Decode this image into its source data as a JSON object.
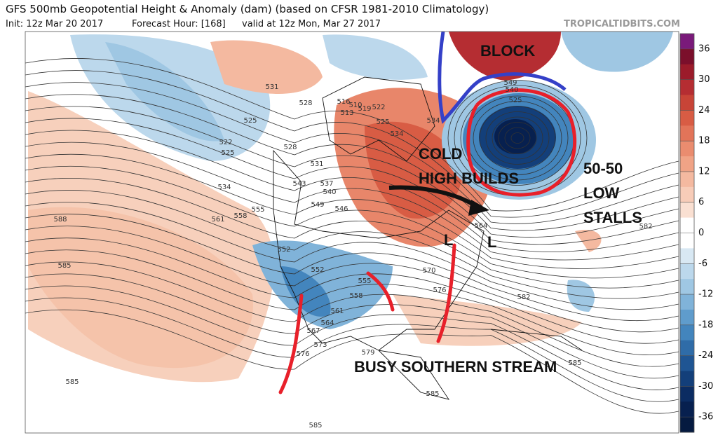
{
  "header": {
    "title": "GFS 500mb Geopotential Height & Anomaly (dam) (based on CFSR 1981-2010 Climatology)",
    "init": "Init: 12z Mar 20 2017",
    "forecast_hour": "Forecast Hour: [168]",
    "valid": "valid at 12z Mon, Mar 27 2017",
    "credit": "TROPICALTIDBITS.COM"
  },
  "annotations": {
    "block": "BLOCK",
    "cold_1": "COLD",
    "cold_2": "HIGH BUILDS",
    "low_1": "50-50",
    "low_2": "LOW",
    "low_3": "STALLS",
    "southern": "BUSY SOUTHERN STREAM",
    "low_mark_1": "L",
    "low_mark_2": "L"
  },
  "contour_labels": [
    "531",
    "528",
    "525",
    "522",
    "525",
    "528",
    "531",
    "534",
    "543",
    "537",
    "540",
    "549",
    "546",
    "555",
    "558",
    "561",
    "588",
    "585",
    "552",
    "552",
    "555",
    "558",
    "561",
    "564",
    "567",
    "573",
    "576",
    "579",
    "585",
    "585",
    "585",
    "582",
    "582",
    "585",
    "570",
    "576",
    "564",
    "549",
    "540",
    "525",
    "534",
    "516",
    "519",
    "522",
    "513",
    "510",
    "525",
    "534"
  ],
  "colorbar": {
    "lim": [
      -39,
      39
    ],
    "ticks": [
      36,
      30,
      24,
      18,
      12,
      6,
      0,
      -6,
      -12,
      -18,
      -24,
      -30,
      -36
    ],
    "colors": [
      "#7a1a7a",
      "#7b0f2b",
      "#9b1b2a",
      "#b52d32",
      "#c84437",
      "#d85c44",
      "#e27459",
      "#ea8c6f",
      "#f0a386",
      "#f4b9a0",
      "#f7ccb8",
      "#fae0d2",
      "#ffffff",
      "#ffffff",
      "#d8e8f3",
      "#bcd8ec",
      "#9fc7e3",
      "#80b3d9",
      "#5f9ccc",
      "#4385bd",
      "#2f6ca8",
      "#1f5593",
      "#133f7a",
      "#0b2c62",
      "#07204f",
      "#051a40"
    ]
  }
}
